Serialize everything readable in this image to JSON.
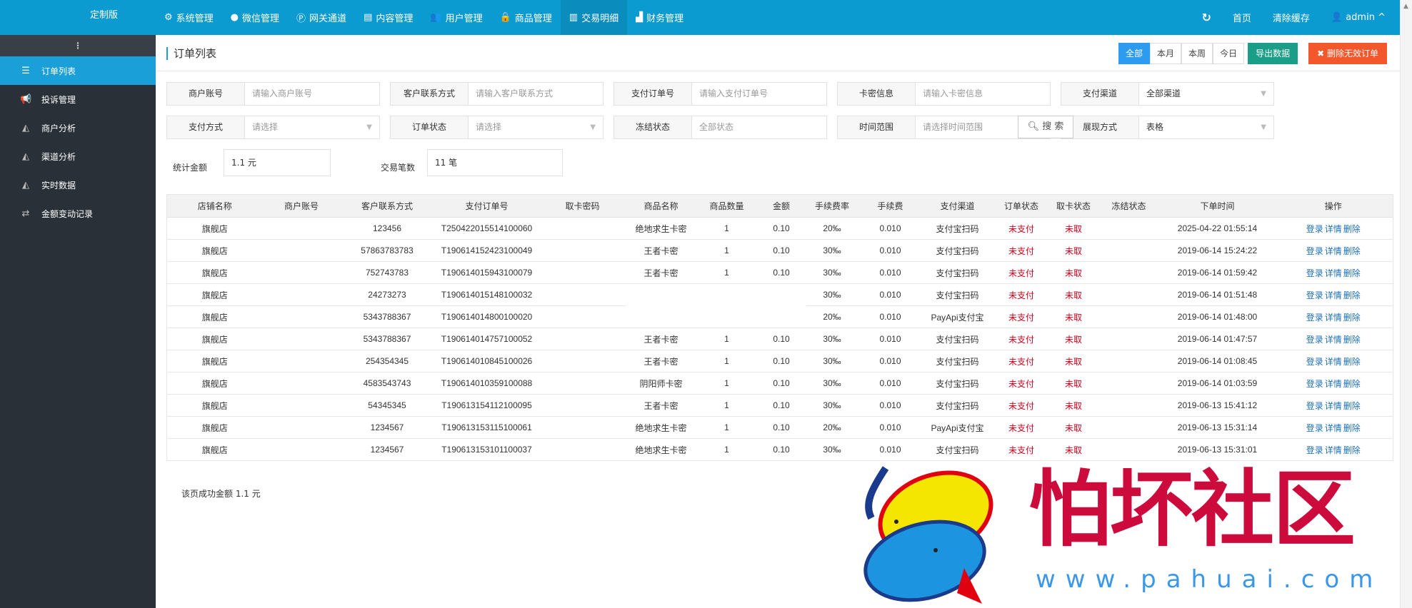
{
  "topbar": {
    "brand": "定制版",
    "nav": [
      {
        "icon": "gear-icon",
        "glyph": "⚙",
        "label": "系统管理"
      },
      {
        "icon": "wechat-icon",
        "glyph": "●",
        "label": "微信管理"
      },
      {
        "icon": "gateway-icon",
        "glyph": "Ⓟ",
        "label": "网关通道"
      },
      {
        "icon": "document-icon",
        "glyph": "▤",
        "label": "内容管理"
      },
      {
        "icon": "users-icon",
        "glyph": "👥",
        "label": "用户管理"
      },
      {
        "icon": "bag-icon",
        "glyph": "🔒",
        "label": "商品管理"
      },
      {
        "icon": "bar-chart-icon",
        "glyph": "▥",
        "label": "交易明细",
        "active": true
      },
      {
        "icon": "finance-icon",
        "glyph": "▟",
        "label": "财务管理"
      }
    ],
    "refresh_glyph": "↻",
    "home": "首页",
    "clear_cache": "清除缓存",
    "user": "admin",
    "user_glyph": "👤",
    "caret": "^"
  },
  "sidebar": {
    "toggle": "⋮",
    "items": [
      {
        "icon": "list-icon",
        "glyph": "☰",
        "label": "订单列表",
        "active": true
      },
      {
        "icon": "megaphone-icon",
        "glyph": "📢",
        "label": "投诉管理"
      },
      {
        "icon": "area-chart-icon",
        "glyph": "◭",
        "label": "商户分析"
      },
      {
        "icon": "area-chart-icon",
        "glyph": "◭",
        "label": "渠道分析"
      },
      {
        "icon": "area-chart-icon",
        "glyph": "◭",
        "label": "实时数据"
      },
      {
        "icon": "exchange-icon",
        "glyph": "⇄",
        "label": "金额变动记录"
      }
    ]
  },
  "main": {
    "title": "订单列表",
    "periods": [
      "全部",
      "本月",
      "本周",
      "今日"
    ],
    "active_period": "全部",
    "export": "导出数据",
    "delete_invalid": "删除无效订单",
    "delete_glyph": "✖",
    "filters": [
      {
        "label": "商户账号",
        "placeholder": "请输入商户账号"
      },
      {
        "label": "客户联系方式",
        "placeholder": "请输入客户联系方式"
      },
      {
        "label": "支付订单号",
        "placeholder": "请输入支付订单号"
      },
      {
        "label": "卡密信息",
        "placeholder": "请输入卡密信息"
      },
      {
        "label": "支付渠道",
        "value": "全部渠道",
        "select": true
      },
      {
        "label": "支付方式",
        "placeholder": "请选择",
        "select": true
      },
      {
        "label": "订单状态",
        "placeholder": "请选择",
        "select": true
      },
      {
        "label": "冻结状态",
        "value": "全部状态"
      },
      {
        "label": "时间范围",
        "placeholder": "请选择时间范围"
      },
      {
        "label": "展现方式",
        "value": "表格",
        "select": true
      }
    ],
    "search": "搜 索",
    "stats": {
      "amount_label": "统计金额",
      "amount": "1.1 元",
      "count_label": "交易笔数",
      "count": "11 笔"
    },
    "table": {
      "headers": [
        "店铺名称",
        "商户账号",
        "客户联系方式",
        "支付订单号",
        "取卡密码",
        "商品名称",
        "商品数量",
        "金额",
        "手续费率",
        "手续费",
        "支付渠道",
        "订单状态",
        "取卡状态",
        "冻结状态",
        "下单时间",
        "操作"
      ],
      "actions": [
        "登录",
        "详情",
        "删除"
      ],
      "rows": [
        [
          "旗舰店",
          "",
          "123456",
          "T250422015514100060",
          "",
          "绝地求生卡密",
          "1",
          "0.10",
          "20‰",
          "0.010",
          "支付宝扫码",
          "未支付",
          "未取",
          "",
          "2025-04-22 01:55:14"
        ],
        [
          "旗舰店",
          "",
          "57863783783",
          "T190614152423100049",
          "",
          "王者卡密",
          "1",
          "0.10",
          "30‰",
          "0.010",
          "支付宝扫码",
          "未支付",
          "未取",
          "",
          "2019-06-14 15:24:22"
        ],
        [
          "旗舰店",
          "",
          "752743783",
          "T190614015943100079",
          "",
          "王者卡密",
          "1",
          "0.10",
          "30‰",
          "0.010",
          "支付宝扫码",
          "未支付",
          "未取",
          "",
          "2019-06-14 01:59:42"
        ],
        [
          "旗舰店",
          "",
          "24273273",
          "T190614015148100032",
          "",
          "",
          "",
          "",
          "30‰",
          "0.010",
          "支付宝扫码",
          "未支付",
          "未取",
          "",
          "2019-06-14 01:51:48"
        ],
        [
          "旗舰店",
          "",
          "5343788367",
          "T190614014800100020",
          "",
          "",
          "",
          "",
          "20‰",
          "0.010",
          "PayApi支付宝",
          "未支付",
          "未取",
          "",
          "2019-06-14 01:48:00"
        ],
        [
          "旗舰店",
          "",
          "5343788367",
          "T190614014757100052",
          "",
          "王者卡密",
          "1",
          "0.10",
          "30‰",
          "0.010",
          "支付宝扫码",
          "未支付",
          "未取",
          "",
          "2019-06-14 01:47:57"
        ],
        [
          "旗舰店",
          "",
          "254354345",
          "T190614010845100026",
          "",
          "王者卡密",
          "1",
          "0.10",
          "30‰",
          "0.010",
          "支付宝扫码",
          "未支付",
          "未取",
          "",
          "2019-06-14 01:08:45"
        ],
        [
          "旗舰店",
          "",
          "4583543743",
          "T190614010359100088",
          "",
          "阴阳师卡密",
          "1",
          "0.10",
          "30‰",
          "0.010",
          "支付宝扫码",
          "未支付",
          "未取",
          "",
          "2019-06-14 01:03:59"
        ],
        [
          "旗舰店",
          "",
          "54345345",
          "T190613154112100095",
          "",
          "王者卡密",
          "1",
          "0.10",
          "30‰",
          "0.010",
          "支付宝扫码",
          "未支付",
          "未取",
          "",
          "2019-06-13 15:41:12"
        ],
        [
          "旗舰店",
          "",
          "1234567",
          "T190613153115100061",
          "",
          "绝地求生卡密",
          "1",
          "0.10",
          "20‰",
          "0.010",
          "PayApi支付宝",
          "未支付",
          "未取",
          "",
          "2019-06-13 15:31:14"
        ],
        [
          "旗舰店",
          "",
          "1234567",
          "T190613153101100037",
          "",
          "绝地求生卡密",
          "1",
          "0.10",
          "30‰",
          "0.010",
          "支付宝扫码",
          "未支付",
          "未取",
          "",
          "2019-06-13 15:31:01"
        ]
      ]
    },
    "page_sum": "该页成功金额 1.1 元"
  },
  "watermark": {
    "text": "怕坏社区",
    "url": "www.pahuai.com"
  },
  "colors": {
    "topbar": "#0b9bd1",
    "sidebar": "#2a3037",
    "active": "#1b9fd8",
    "export": "#1a9e87",
    "delete": "#f3582c",
    "status_red": "#d0021b",
    "link": "#1d6fb8"
  }
}
